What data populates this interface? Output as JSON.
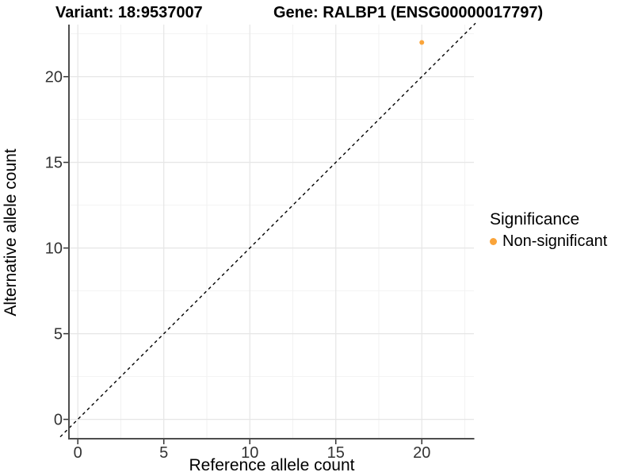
{
  "chart_data": {
    "type": "scatter",
    "title_left": "Variant: 18:9537007",
    "title_right": "Gene: RALBP1 (ENSG00000017797)",
    "xlabel": "Reference allele count",
    "ylabel": "Alternative allele count",
    "x_ticks": [
      0,
      5,
      10,
      15,
      20
    ],
    "y_ticks": [
      0,
      5,
      10,
      15,
      20
    ],
    "x_minor": [
      2.5,
      7.5,
      12.5,
      17.5,
      22.5
    ],
    "y_minor": [
      2.5,
      7.5,
      12.5,
      17.5,
      22.5
    ],
    "xlim": [
      -0.47,
      23.03
    ],
    "ylim": [
      -1.13,
      23.04
    ],
    "grid": true,
    "identity_line": {
      "slope": 1,
      "intercept": 0,
      "style": "dashed",
      "color": "#000000"
    },
    "series": [
      {
        "name": "Non-significant",
        "color": "#FAA43A",
        "points": [
          {
            "x": 20,
            "y": 22
          }
        ]
      }
    ],
    "legend": {
      "title": "Significance",
      "position": "right",
      "items": [
        {
          "label": "Non-significant",
          "color": "#FAA43A"
        }
      ]
    },
    "colors": {
      "point": "#FAA43A",
      "grid_major": "#E6E6E6",
      "grid_minor": "#F2F2F2",
      "axis_line": "#4D4D4D",
      "tick_mark": "#333333",
      "tick_text": "#333333",
      "background": "#FFFFFF"
    }
  }
}
